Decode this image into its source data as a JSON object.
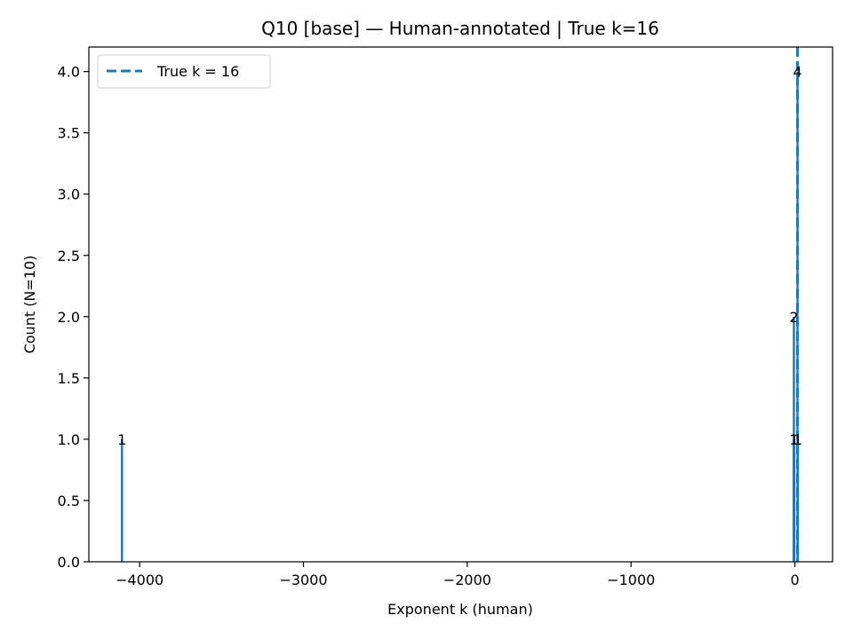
{
  "chart_data": {
    "type": "bar",
    "title": "Q10 [base] — Human-annotated | True k=16",
    "xlabel": "Exponent k (human)",
    "ylabel": "Count (N=10)",
    "xlim": [
      -4310,
      230
    ],
    "ylim": [
      0,
      4.2
    ],
    "x_ticks": [
      -4000,
      -3000,
      -2000,
      -1000,
      0
    ],
    "x_tick_labels": [
      "−4000",
      "−3000",
      "−2000",
      "−1000",
      "0"
    ],
    "y_ticks": [
      0,
      0.5,
      1,
      1.5,
      2,
      2.5,
      3,
      3.5,
      4
    ],
    "y_tick_labels": [
      "0.0",
      "0.5",
      "1.0",
      "1.5",
      "2.0",
      "2.5",
      "3.0",
      "3.5",
      "4.0"
    ],
    "bars": [
      {
        "x": -4108,
        "count": 1,
        "label": "1"
      },
      {
        "x": -7,
        "count": 1,
        "label": "1"
      },
      {
        "x": -6,
        "count": 2,
        "label": "2"
      },
      {
        "x": -4,
        "count": 1,
        "label": "1"
      },
      {
        "x": 16,
        "count": 4,
        "label": "4"
      },
      {
        "x": 18,
        "count": 1,
        "label": "1"
      }
    ],
    "reference_line": {
      "x": 16,
      "label": "True k = 16",
      "style": "dashed",
      "color": "#1f77b4"
    },
    "bar_color": "#1f77b4",
    "legend_position": "upper-left",
    "grid": false
  }
}
